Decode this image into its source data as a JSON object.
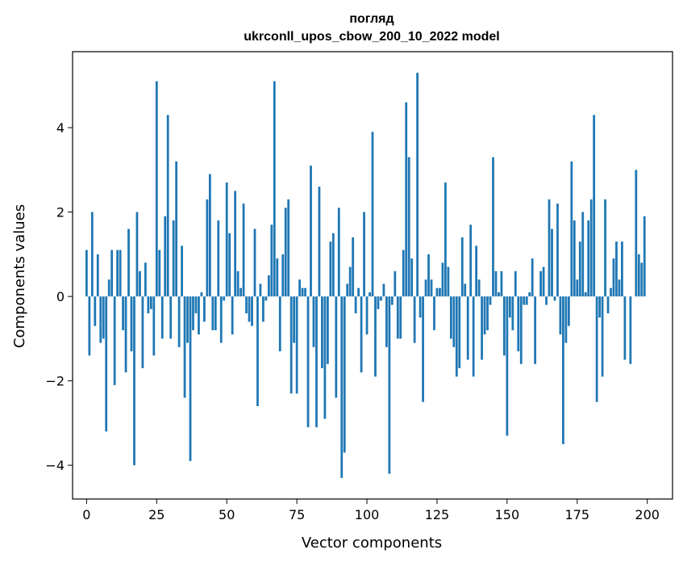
{
  "chart_data": {
    "type": "bar",
    "title_line1": "погляд",
    "title_line2": "ukrconll_upos_cbow_200_10_2022 model",
    "xlabel": "Vector components",
    "ylabel": "Components values",
    "xlim": [
      -5,
      209
    ],
    "ylim": [
      -4.8,
      5.8
    ],
    "xticks": [
      0,
      25,
      50,
      75,
      100,
      125,
      150,
      175,
      200
    ],
    "yticks": [
      -4,
      -2,
      0,
      2,
      4
    ],
    "ytick_labels": [
      "−4",
      "−2",
      "0",
      "2",
      "4"
    ],
    "bar_color": "#1f77b4",
    "grid": false,
    "legend": "none",
    "values": [
      1.1,
      -1.4,
      2.0,
      -0.7,
      1.0,
      -1.1,
      -1.0,
      -3.2,
      0.4,
      1.1,
      -2.1,
      1.1,
      1.1,
      -0.8,
      -1.8,
      1.6,
      -1.3,
      -4.0,
      2.0,
      0.6,
      -1.7,
      0.8,
      -0.4,
      -0.3,
      -1.4,
      5.1,
      1.1,
      -1.0,
      1.9,
      4.3,
      -1.0,
      1.8,
      3.2,
      -1.2,
      1.2,
      -2.4,
      -1.1,
      -3.9,
      -0.8,
      -0.4,
      -0.9,
      0.1,
      -0.6,
      2.3,
      2.9,
      -0.8,
      -0.8,
      1.8,
      -1.1,
      -0.1,
      2.7,
      1.5,
      -0.9,
      2.5,
      0.6,
      0.2,
      2.2,
      -0.4,
      -0.6,
      -0.7,
      1.6,
      -2.6,
      0.3,
      -0.6,
      -0.1,
      0.5,
      1.7,
      5.1,
      0.9,
      -1.3,
      1.0,
      2.1,
      2.3,
      -2.3,
      -1.1,
      -2.3,
      0.4,
      0.2,
      0.2,
      -3.1,
      3.1,
      -1.2,
      -3.1,
      2.6,
      -1.7,
      -2.9,
      -1.6,
      1.3,
      1.5,
      -2.4,
      2.1,
      -4.3,
      -3.7,
      0.3,
      0.7,
      1.4,
      -0.4,
      0.2,
      -1.8,
      2.0,
      -0.9,
      0.1,
      3.9,
      -1.9,
      -0.3,
      -0.1,
      0.3,
      -1.2,
      -4.2,
      -0.2,
      0.6,
      -1.0,
      -1.0,
      1.1,
      4.6,
      3.3,
      0.9,
      -1.1,
      5.3,
      -0.5,
      -2.5,
      0.4,
      1.0,
      0.4,
      -0.8,
      0.2,
      0.2,
      0.8,
      2.7,
      0.7,
      -1.0,
      -1.2,
      -1.9,
      -1.7,
      1.4,
      0.3,
      -1.5,
      1.7,
      -1.9,
      1.2,
      0.4,
      -1.5,
      -0.9,
      -0.8,
      -0.2,
      3.3,
      0.6,
      0.1,
      0.6,
      -1.4,
      -3.3,
      -0.5,
      -0.8,
      0.6,
      -1.3,
      -1.6,
      -0.2,
      -0.2,
      0.1,
      0.9,
      -1.6,
      0.0,
      0.6,
      0.7,
      -0.2,
      2.3,
      1.6,
      -0.1,
      2.2,
      -0.9,
      -3.5,
      -1.1,
      -0.7,
      3.2,
      1.8,
      0.4,
      1.3,
      2.0,
      0.1,
      1.8,
      2.3,
      4.3,
      -2.5,
      -0.5,
      -1.9,
      2.3,
      -0.4,
      0.2,
      0.9,
      1.3,
      0.4,
      1.3,
      -1.5,
      0.0,
      -1.6,
      0.0,
      3.0,
      1.0,
      0.8,
      1.9
    ]
  }
}
